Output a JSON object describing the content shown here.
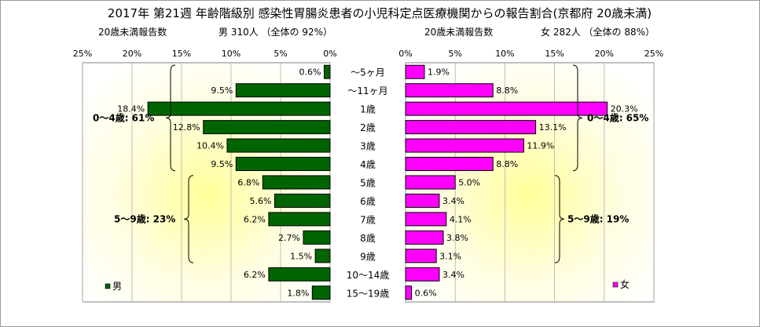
{
  "title": "2017年 第21週 年齢階級別 感染性胃腸炎患者の小児科定点医療機関からの報告割合(京都府 20歳未満)",
  "chart_data": {
    "type": "bar",
    "orientation": "horizontal-butterfly",
    "categories": [
      "～5ヶ月",
      "～11ヶ月",
      "1歳",
      "2歳",
      "3歳",
      "4歳",
      "5歳",
      "6歳",
      "7歳",
      "8歳",
      "9歳",
      "10～14歳",
      "15～19歳"
    ],
    "xlim": [
      0,
      25
    ],
    "ticks": [
      "25%",
      "20%",
      "15%",
      "10%",
      "5%",
      "0%"
    ],
    "ticks_right": [
      "0%",
      "5%",
      "10%",
      "15%",
      "20%",
      "25%"
    ],
    "grid": true,
    "male": {
      "header_left": "20歳未満報告数",
      "header_right": "男  310人 （全体の  92%）",
      "legend": "男",
      "color": "#006400",
      "values": [
        0.6,
        9.5,
        18.4,
        12.8,
        10.4,
        9.5,
        6.8,
        5.6,
        6.2,
        2.7,
        1.5,
        6.2,
        1.8
      ],
      "value_labels": [
        "0.6%",
        "9.5%",
        "18.4%",
        "12.8%",
        "10.4%",
        "9.5%",
        "6.8%",
        "5.6%",
        "6.2%",
        "2.7%",
        "1.5%",
        "6.2%",
        "1.8%"
      ],
      "groups": [
        {
          "label": "0～4歳: 61%",
          "from": 0,
          "to": 5
        },
        {
          "label": "5～9歳: 23%",
          "from": 6,
          "to": 10
        }
      ]
    },
    "female": {
      "header_left": "20歳未満報告数",
      "header_right": "女  282人 （全体の  88%）",
      "legend": "女",
      "color": "#ff00ff",
      "values": [
        1.9,
        8.8,
        20.3,
        13.1,
        11.9,
        8.8,
        5.0,
        3.4,
        4.1,
        3.8,
        3.1,
        3.4,
        0.6
      ],
      "value_labels": [
        "1.9%",
        "8.8%",
        "20.3%",
        "13.1%",
        "11.9%",
        "8.8%",
        "5.0%",
        "3.4%",
        "4.1%",
        "3.8%",
        "3.1%",
        "3.4%",
        "0.6%"
      ],
      "groups": [
        {
          "label": "0～4歳: 65%",
          "from": 0,
          "to": 5
        },
        {
          "label": "5～9歳: 19%",
          "from": 6,
          "to": 10
        }
      ]
    }
  }
}
